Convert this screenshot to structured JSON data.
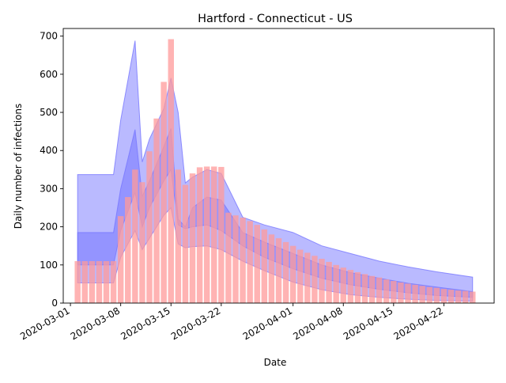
{
  "chart_data": {
    "type": "bar",
    "title": "Hartford - Connecticut - US",
    "xlabel": "Date",
    "ylabel": "Daily number of infections",
    "ylim": [
      0,
      720
    ],
    "yticks": [
      0,
      100,
      200,
      300,
      400,
      500,
      600,
      700
    ],
    "xticks": [
      "2020-03-01",
      "2020-03-08",
      "2020-03-15",
      "2020-03-22",
      "2020-04-01",
      "2020-04-08",
      "2020-04-15",
      "2020-04-22"
    ],
    "grid": false,
    "colors": {
      "bars": "#ff9999",
      "band": "#6666ff",
      "band_edge": "#7777ff"
    },
    "bars": {
      "dates": [
        "2020-03-02",
        "2020-03-03",
        "2020-03-04",
        "2020-03-05",
        "2020-03-06",
        "2020-03-07",
        "2020-03-08",
        "2020-03-09",
        "2020-03-10",
        "2020-03-11",
        "2020-03-12",
        "2020-03-13",
        "2020-03-14",
        "2020-03-15",
        "2020-03-16",
        "2020-03-17",
        "2020-03-18",
        "2020-03-19",
        "2020-03-20",
        "2020-03-21",
        "2020-03-22",
        "2020-03-23",
        "2020-03-24",
        "2020-03-25",
        "2020-03-26",
        "2020-03-27",
        "2020-03-28",
        "2020-03-29",
        "2020-03-30",
        "2020-03-31",
        "2020-04-01",
        "2020-04-02",
        "2020-04-03",
        "2020-04-04",
        "2020-04-05",
        "2020-04-06",
        "2020-04-07",
        "2020-04-08",
        "2020-04-09",
        "2020-04-10",
        "2020-04-11",
        "2020-04-12",
        "2020-04-13",
        "2020-04-14",
        "2020-04-15",
        "2020-04-16",
        "2020-04-17",
        "2020-04-18",
        "2020-04-19",
        "2020-04-20",
        "2020-04-21",
        "2020-04-22",
        "2020-04-23",
        "2020-04-24",
        "2020-04-25",
        "2020-04-26"
      ],
      "values": [
        110,
        110,
        110,
        110,
        110,
        110,
        228,
        278,
        350,
        317,
        398,
        484,
        580,
        692,
        350,
        310,
        340,
        356,
        358,
        358,
        357,
        237,
        230,
        224,
        215,
        205,
        193,
        180,
        170,
        160,
        150,
        140,
        132,
        124,
        116,
        108,
        100,
        93,
        87,
        81,
        76,
        71,
        67,
        62,
        58,
        54,
        51,
        48,
        45,
        42,
        40,
        37,
        35,
        33,
        32,
        30
      ]
    },
    "bands": [
      {
        "dates": [
          "2020-03-02",
          "2020-03-07",
          "2020-03-08",
          "2020-03-10",
          "2020-03-11",
          "2020-03-12",
          "2020-03-14",
          "2020-03-15",
          "2020-03-16",
          "2020-03-17",
          "2020-03-18",
          "2020-03-20",
          "2020-03-22",
          "2020-03-25",
          "2020-03-28",
          "2020-04-01",
          "2020-04-05",
          "2020-04-09",
          "2020-04-13",
          "2020-04-17",
          "2020-04-21",
          "2020-04-26"
        ],
        "upper": [
          337,
          337,
          480,
          688,
          370,
          430,
          510,
          590,
          500,
          315,
          330,
          350,
          340,
          225,
          205,
          185,
          150,
          130,
          110,
          95,
          82,
          68
        ],
        "lower": [
          53,
          53,
          120,
          190,
          140,
          170,
          230,
          250,
          155,
          145,
          148,
          150,
          140,
          110,
          85,
          55,
          35,
          22,
          15,
          10,
          7,
          5
        ]
      },
      {
        "dates": [
          "2020-03-02",
          "2020-03-07",
          "2020-03-08",
          "2020-03-10",
          "2020-03-11",
          "2020-03-12",
          "2020-03-14",
          "2020-03-15",
          "2020-03-16",
          "2020-03-17",
          "2020-03-18",
          "2020-03-20",
          "2020-03-22",
          "2020-03-25",
          "2020-03-28",
          "2020-04-01",
          "2020-04-05",
          "2020-04-09",
          "2020-04-13",
          "2020-04-17",
          "2020-04-21",
          "2020-04-26"
        ],
        "upper": [
          185,
          185,
          300,
          455,
          280,
          320,
          410,
          458,
          220,
          200,
          250,
          278,
          270,
          185,
          160,
          130,
          100,
          80,
          65,
          52,
          42,
          30
        ],
        "lower": [
          100,
          100,
          190,
          290,
          200,
          250,
          320,
          350,
          205,
          195,
          200,
          205,
          190,
          150,
          120,
          90,
          65,
          48,
          36,
          27,
          20,
          15
        ]
      }
    ]
  }
}
